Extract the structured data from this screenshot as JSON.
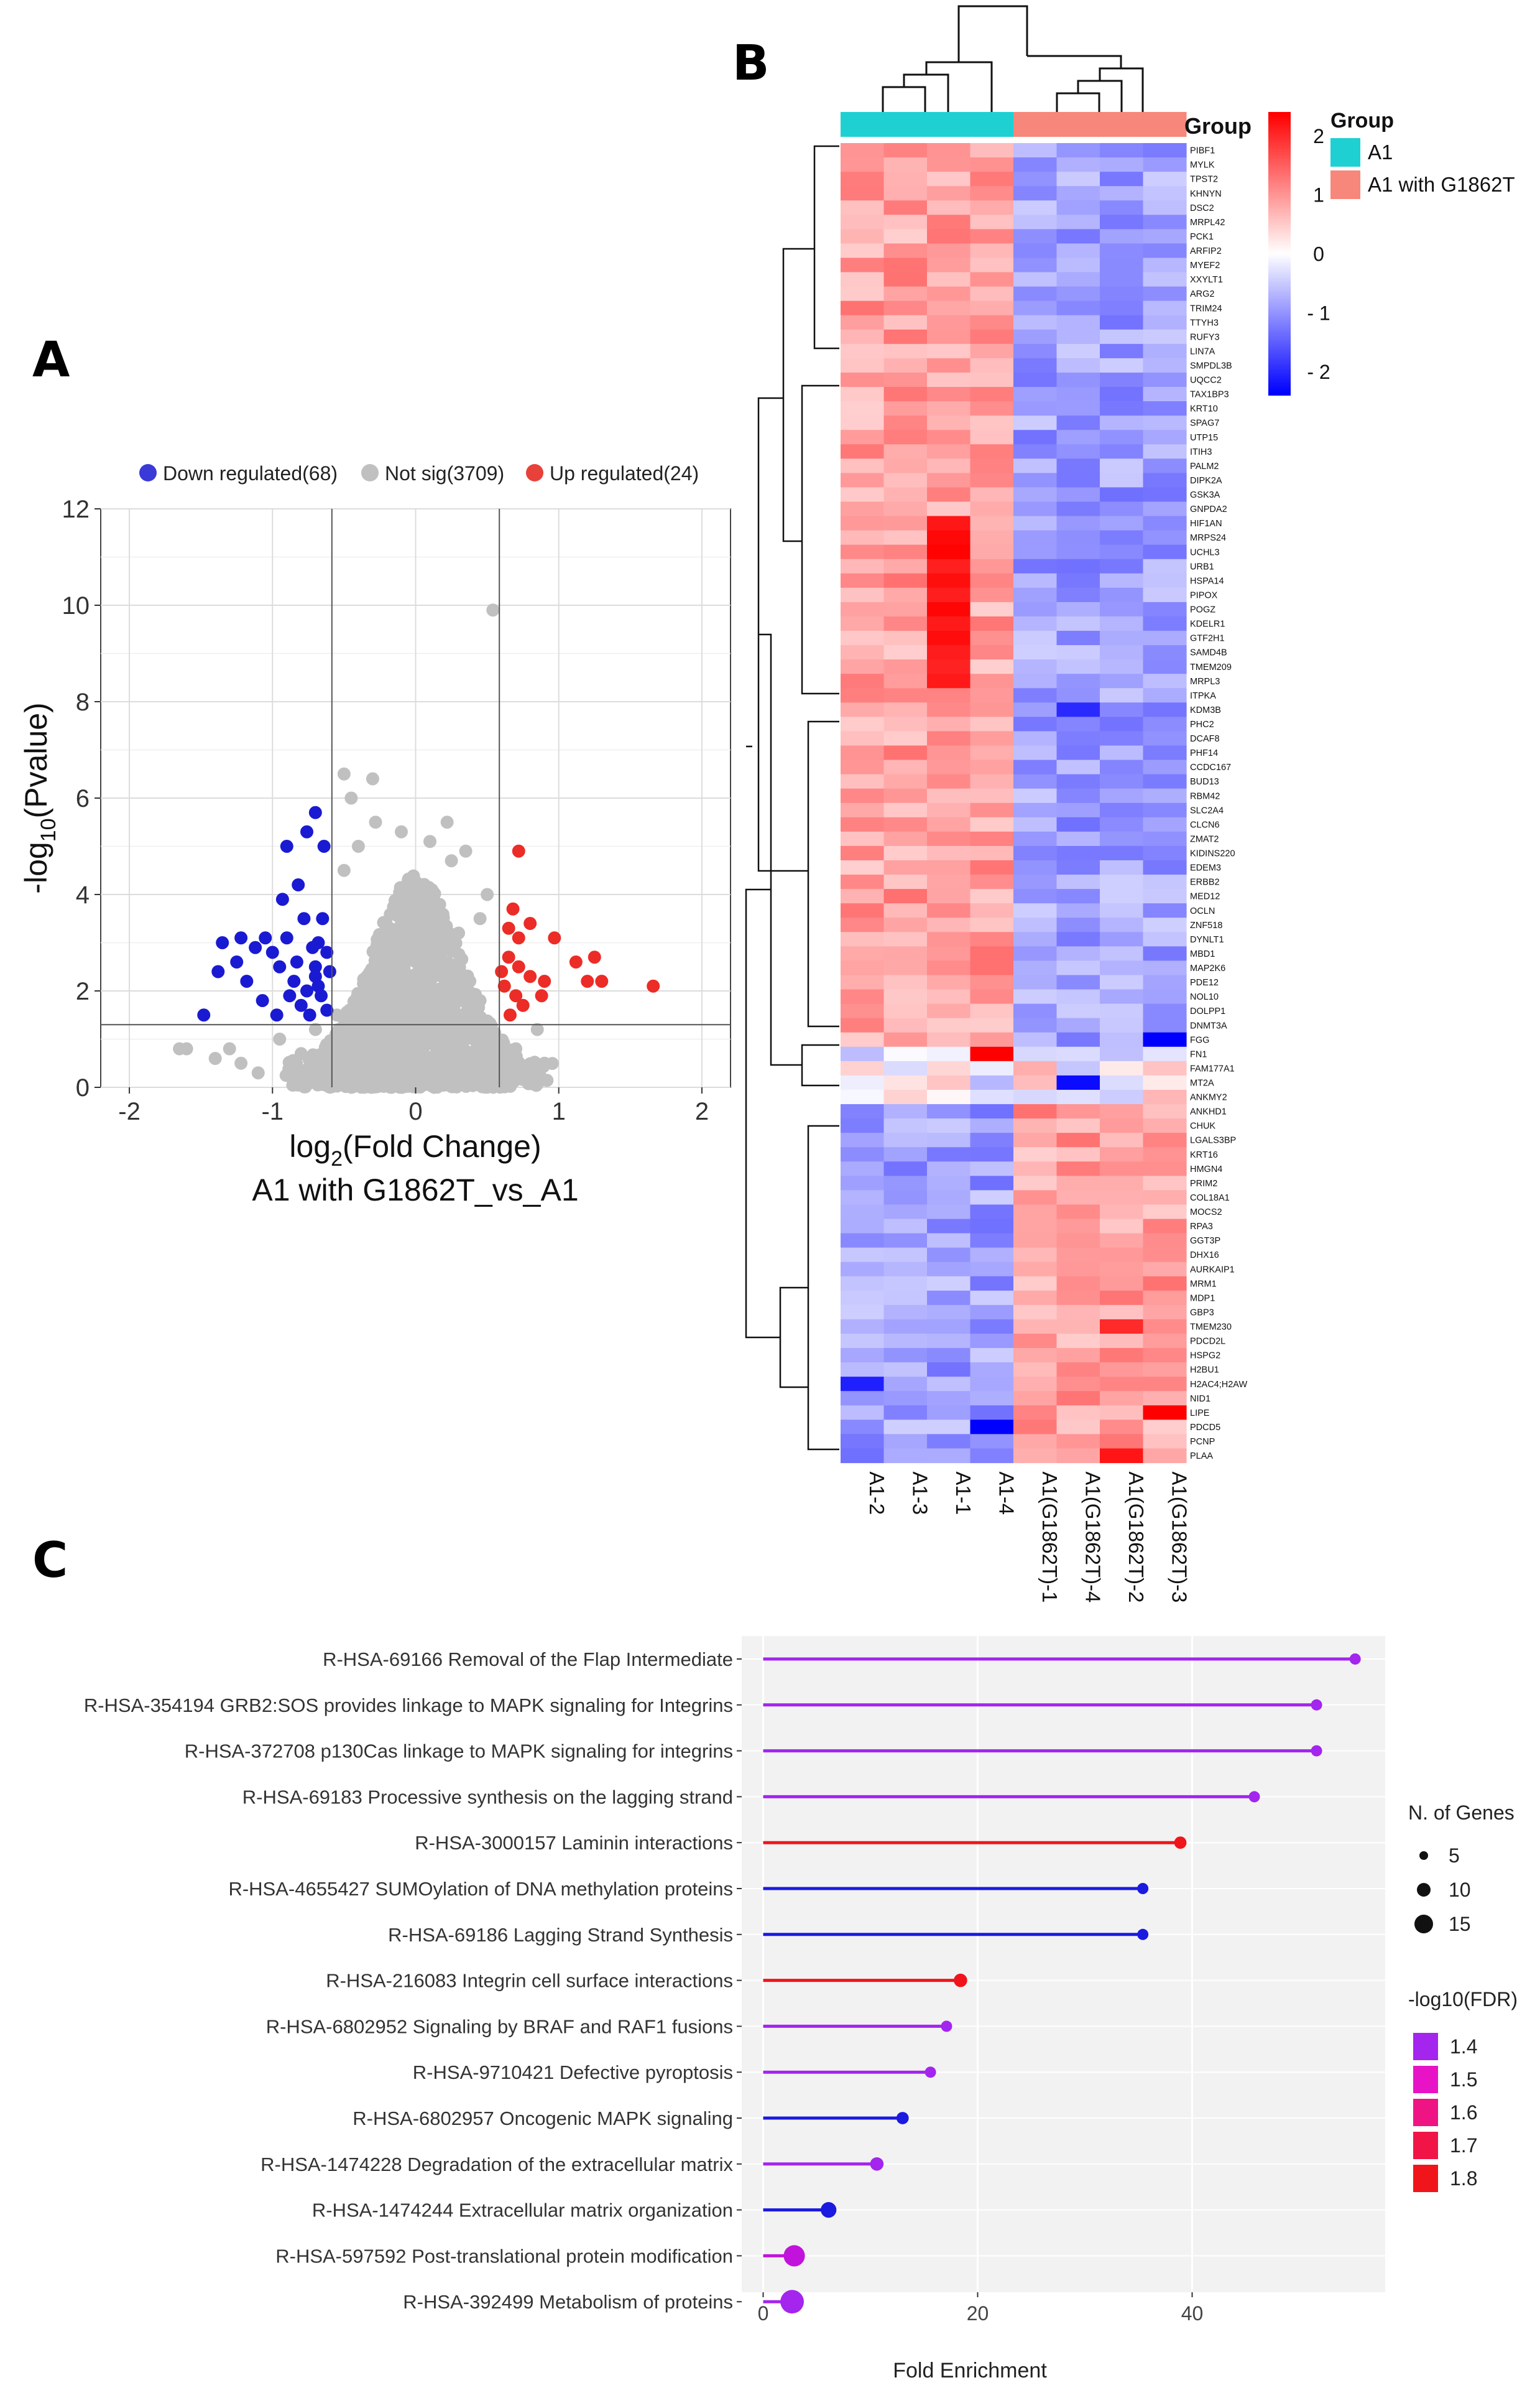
{
  "panel_labels": {
    "a": "A",
    "b": "B",
    "c": "C"
  },
  "chart_data": [
    {
      "type": "scatter",
      "panel": "A",
      "xlabel_main": "log",
      "xlabel_sub": "2",
      "xlabel_tail": "(Fold Change)",
      "subtitle": "A1 with G1862T_vs_A1",
      "ylabel_main": "-log",
      "ylabel_sub": "10",
      "ylabel_tail": "(Pvalue)",
      "xlim": [
        -2.2,
        2.2
      ],
      "ylim": [
        0,
        12
      ],
      "x_ticks": [
        "-2",
        "-1",
        "0",
        "1",
        "2"
      ],
      "x_tick_values": [
        -2,
        -1,
        0,
        1,
        2
      ],
      "y_ticks": [
        "0",
        "2",
        "4",
        "6",
        "8",
        "10",
        "12"
      ],
      "y_tick_values": [
        0,
        2,
        4,
        6,
        8,
        10,
        12
      ],
      "thresholds": {
        "fc_left": -0.585,
        "fc_right": 0.585,
        "pvalue_line": 1.3
      },
      "legend": [
        {
          "label": "Down regulated(68)",
          "color": "#3a3ad8"
        },
        {
          "label": "Not sig(3709)",
          "color": "#c0c0c0"
        },
        {
          "label": "Up regulated(24)",
          "color": "#e8413a"
        }
      ],
      "down_points": [
        [
          -1.38,
          2.4
        ],
        [
          -1.35,
          3.0
        ],
        [
          -1.22,
          3.1
        ],
        [
          -1.25,
          2.6
        ],
        [
          -1.18,
          2.2
        ],
        [
          -1.12,
          2.9
        ],
        [
          -1.05,
          3.1
        ],
        [
          -1.0,
          2.8
        ],
        [
          -0.95,
          2.5
        ],
        [
          -0.93,
          3.9
        ],
        [
          -0.9,
          3.1
        ],
        [
          -0.85,
          2.2
        ],
        [
          -0.82,
          4.2
        ],
        [
          -0.78,
          3.5
        ],
        [
          -0.72,
          2.9
        ],
        [
          -0.7,
          2.5
        ],
        [
          -0.68,
          2.1
        ],
        [
          -0.65,
          3.5
        ],
        [
          -0.62,
          2.8
        ],
        [
          -0.6,
          2.4
        ],
        [
          -0.64,
          5.0
        ],
        [
          -0.7,
          5.7
        ],
        [
          -0.9,
          5.0
        ],
        [
          -0.76,
          5.3
        ],
        [
          -1.48,
          1.5
        ],
        [
          -1.07,
          1.8
        ],
        [
          -0.97,
          1.5
        ],
        [
          -0.88,
          1.9
        ],
        [
          -0.8,
          1.7
        ],
        [
          -0.74,
          1.5
        ],
        [
          -0.66,
          1.9
        ],
        [
          -0.62,
          1.6
        ],
        [
          -0.7,
          2.3
        ],
        [
          -0.76,
          2.0
        ],
        [
          -0.83,
          2.6
        ],
        [
          -0.68,
          3.0
        ]
      ],
      "up_points": [
        [
          0.72,
          4.9
        ],
        [
          0.68,
          3.7
        ],
        [
          0.65,
          3.3
        ],
        [
          0.72,
          3.1
        ],
        [
          0.8,
          3.4
        ],
        [
          0.65,
          2.7
        ],
        [
          0.72,
          2.5
        ],
        [
          0.8,
          2.3
        ],
        [
          0.9,
          2.2
        ],
        [
          0.97,
          3.1
        ],
        [
          0.62,
          2.1
        ],
        [
          0.7,
          1.9
        ],
        [
          0.75,
          1.7
        ],
        [
          0.88,
          1.9
        ],
        [
          1.12,
          2.6
        ],
        [
          1.25,
          2.7
        ],
        [
          1.2,
          2.2
        ],
        [
          1.3,
          2.2
        ],
        [
          1.66,
          2.1
        ],
        [
          0.6,
          2.4
        ],
        [
          0.66,
          1.5
        ]
      ],
      "notsig_scatter": [
        [
          0.54,
          9.9
        ],
        [
          -0.5,
          6.5
        ],
        [
          -0.3,
          6.4
        ],
        [
          -0.45,
          6.0
        ],
        [
          -0.28,
          5.5
        ],
        [
          -0.4,
          5.0
        ],
        [
          0.22,
          5.5
        ],
        [
          0.1,
          5.1
        ],
        [
          0.35,
          4.9
        ],
        [
          0.25,
          4.7
        ],
        [
          0.5,
          4.0
        ],
        [
          -0.5,
          4.5
        ],
        [
          -0.1,
          5.3
        ],
        [
          0.45,
          3.5
        ],
        [
          0.3,
          3.2
        ],
        [
          -1.65,
          0.8
        ],
        [
          -1.6,
          0.8
        ],
        [
          -1.4,
          0.6
        ],
        [
          -1.3,
          0.8
        ],
        [
          -1.1,
          0.3
        ],
        [
          -1.22,
          0.5
        ],
        [
          0.55,
          1.0
        ],
        [
          0.7,
          0.8
        ],
        [
          0.9,
          0.5
        ],
        [
          0.85,
          1.2
        ],
        [
          0.75,
          0.3
        ],
        [
          -0.8,
          0.7
        ],
        [
          -0.7,
          1.2
        ],
        [
          -0.95,
          1.0
        ],
        [
          0.45,
          1.8
        ],
        [
          -0.55,
          1.5
        ]
      ]
    },
    {
      "type": "heatmap",
      "panel": "B",
      "columns": [
        "A1-2",
        "A1-3",
        "A1-1",
        "A1-4",
        "A1(G1862T)-1",
        "A1(G1862T)-4",
        "A1(G1862T)-2",
        "A1(G1862T)-3"
      ],
      "column_groups": [
        "A1",
        "A1",
        "A1",
        "A1",
        "A1 with G1862T",
        "A1 with G1862T",
        "A1 with G1862T",
        "A1 with G1862T"
      ],
      "group_annotation_label": "Group",
      "legend_title": "Group",
      "groups": [
        {
          "label": "A1",
          "color": "#1fd0d3"
        },
        {
          "label": "A1 with G1862T",
          "color": "#f7877a"
        }
      ],
      "color_scale": {
        "min": -2.4,
        "max": 2.4,
        "ticks": [
          "2",
          "1",
          "0",
          "- 1",
          "- 2"
        ],
        "tick_values": [
          2,
          1,
          0,
          -1,
          -2
        ]
      },
      "genes": [
        "PIBF1",
        "MYLK",
        "TPST2",
        "KHNYN",
        "DSC2",
        "MRPL42",
        "PCK1",
        "ARFIP2",
        "MYEF2",
        "XXYLT1",
        "ARG2",
        "TRIM24",
        "TTYH3",
        "RUFY3",
        "LIN7A",
        "SMPDL3B",
        "UQCC2",
        "TAX1BP3",
        "KRT10",
        "SPAG7",
        "UTP15",
        "ITIH3",
        "PALM2",
        "DIPK2A",
        "GSK3A",
        "GNPDA2",
        "HIF1AN",
        "MRPS24",
        "UCHL3",
        "URB1",
        "HSPA14",
        "PIPOX",
        "POGZ",
        "KDELR1",
        "GTF2H1",
        "SAMD4B",
        "TMEM209",
        "MRPL3",
        "ITPKA",
        "KDM3B",
        "PHC2",
        "DCAF8",
        "PHF14",
        "CCDC167",
        "BUD13",
        "RBM42",
        "SLC2A4",
        "CLCN6",
        "ZMAT2",
        "KIDINS220",
        "EDEM3",
        "ERBB2",
        "MED12",
        "OCLN",
        "ZNF518",
        "DYNLT1",
        "MBD1",
        "MAP2K6",
        "PDE12",
        "NOL10",
        "DOLPP1",
        "DNMT3A",
        "FGG",
        "FN1",
        "FAM177A1",
        "MT2A",
        "ANKMY2",
        "ANKHD1",
        "CHUK",
        "LGALS3BP",
        "KRT16",
        "HMGN4",
        "PRIM2",
        "COL18A1",
        "MOCS2",
        "RPA3",
        "GGT3P",
        "DHX16",
        "AURKAIP1",
        "MRM1",
        "MDP1",
        "GBP3",
        "TMEM230",
        "PDCD2L",
        "HSPG2",
        "H2BU1",
        "H2AC4;H2AW",
        "NID1",
        "LIPE",
        "PDCD5",
        "PCNP",
        "PLAA"
      ]
    },
    {
      "type": "lollipop",
      "panel": "C",
      "xlabel": "Fold Enrichment",
      "xlim": [
        -2,
        58
      ],
      "x_ticks": [
        "0",
        "20",
        "40"
      ],
      "x_tick_values": [
        0,
        20,
        40
      ],
      "size_legend_title": "N. of Genes",
      "size_legend": [
        {
          "label": "5",
          "n": 5
        },
        {
          "label": "10",
          "n": 10
        },
        {
          "label": "15",
          "n": 15
        }
      ],
      "color_legend_title": "-log10(FDR)",
      "color_legend": [
        {
          "label": "1.4",
          "color": "#a325ee"
        },
        {
          "label": "1.5",
          "color": "#e813c6"
        },
        {
          "label": "1.6",
          "color": "#ee1484"
        },
        {
          "label": "1.7",
          "color": "#f01546"
        },
        {
          "label": "1.8",
          "color": "#f0151a"
        }
      ],
      "categories": [
        "R-HSA-69166 Removal of the Flap Intermediate",
        "R-HSA-354194 GRB2:SOS provides linkage to MAPK signaling for Integrins",
        "R-HSA-372708 p130Cas linkage to MAPK signaling for integrins",
        "R-HSA-69183 Processive synthesis on the lagging strand",
        "R-HSA-3000157 Laminin interactions",
        "R-HSA-4655427 SUMOylation of DNA methylation proteins",
        "R-HSA-69186 Lagging Strand Synthesis",
        "R-HSA-216083 Integrin cell surface interactions",
        "R-HSA-6802952 Signaling by BRAF and RAF1 fusions",
        "R-HSA-9710421 Defective pyroptosis",
        "R-HSA-6802957 Oncogenic MAPK signaling",
        "R-HSA-1474228 Degradation of the extracellular matrix",
        "R-HSA-1474244 Extracellular matrix organization",
        "R-HSA-597592 Post-translational protein modification",
        "R-HSA-392499 Metabolism of proteins"
      ],
      "values": [
        55.2,
        51.6,
        51.6,
        45.8,
        38.9,
        35.4,
        35.4,
        18.4,
        17.1,
        15.6,
        13.0,
        10.6,
        6.1,
        2.9,
        2.7
      ],
      "n_genes": [
        3,
        3,
        3,
        3,
        4,
        3,
        3,
        5,
        3,
        3,
        4,
        5,
        7,
        12,
        14
      ],
      "colors": [
        "#a325ee",
        "#a325ee",
        "#a325ee",
        "#a325ee",
        "#f0151a",
        "#1a1ae0",
        "#1a1ae0",
        "#f0151a",
        "#a325ee",
        "#a325ee",
        "#1a1ae0",
        "#a325ee",
        "#1a1ae0",
        "#c113dc",
        "#a325ee"
      ]
    }
  ]
}
